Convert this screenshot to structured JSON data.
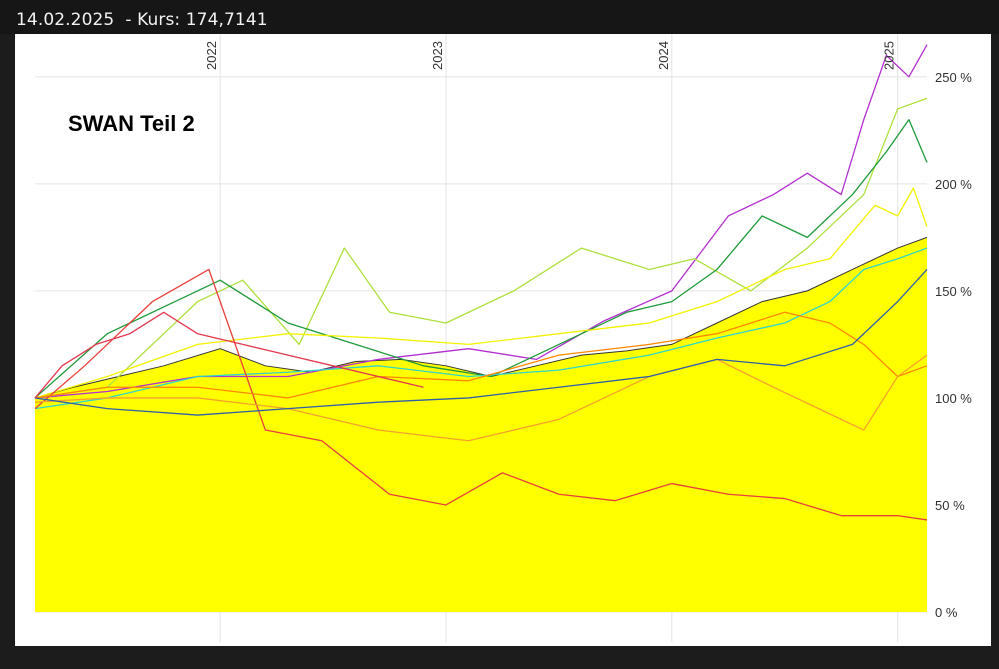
{
  "header": {
    "date": "14.02.2025",
    "quote_label": "- Kurs:",
    "quote_value": "174,7141"
  },
  "chart_data": {
    "type": "line",
    "title": "SWAN Teil 2",
    "x_ticks": [
      "2022",
      "2023",
      "2024",
      "2025"
    ],
    "y_ticks": [
      "0 %",
      "50 %",
      "100 %",
      "150 %",
      "200 %",
      "250 %"
    ],
    "ylim": [
      0,
      270
    ],
    "xlim": [
      2021.18,
      2025.13
    ],
    "grid": true,
    "area_series": {
      "color": "#ffff00",
      "edge_color": "#333333",
      "x": [
        2021.18,
        2021.35,
        2021.55,
        2021.75,
        2022.0,
        2022.2,
        2022.4,
        2022.6,
        2022.8,
        2023.0,
        2023.2,
        2023.4,
        2023.6,
        2023.8,
        2024.0,
        2024.2,
        2024.4,
        2024.6,
        2024.8,
        2025.0,
        2025.13
      ],
      "values": [
        100,
        105,
        110,
        115,
        123,
        115,
        112,
        117,
        118,
        115,
        110,
        115,
        120,
        122,
        125,
        135,
        145,
        150,
        160,
        170,
        175
      ]
    },
    "series": [
      {
        "color": "#b32fd1",
        "x": [
          2021.18,
          2021.5,
          2021.9,
          2022.3,
          2022.7,
          2023.1,
          2023.4,
          2023.7,
          2024.0,
          2024.25,
          2024.45,
          2024.6,
          2024.75,
          2024.85,
          2024.95,
          2025.05,
          2025.13
        ],
        "values": [
          100,
          103,
          110,
          110,
          118,
          123,
          118,
          136,
          150,
          185,
          195,
          205,
          195,
          230,
          260,
          250,
          265
        ]
      },
      {
        "color": "#aee03b",
        "x": [
          2021.18,
          2021.5,
          2021.9,
          2022.1,
          2022.35,
          2022.55,
          2022.75,
          2023.0,
          2023.3,
          2023.6,
          2023.9,
          2024.1,
          2024.35,
          2024.6,
          2024.85,
          2025.0,
          2025.13
        ],
        "values": [
          100,
          105,
          145,
          155,
          125,
          170,
          140,
          135,
          150,
          170,
          160,
          165,
          150,
          170,
          195,
          235,
          240
        ]
      },
      {
        "color": "#1f9a3a",
        "x": [
          2021.18,
          2021.5,
          2021.8,
          2022.0,
          2022.3,
          2022.6,
          2022.9,
          2023.2,
          2023.5,
          2023.8,
          2024.0,
          2024.2,
          2024.4,
          2024.6,
          2024.8,
          2024.95,
          2025.05,
          2025.13
        ],
        "values": [
          100,
          130,
          145,
          155,
          135,
          125,
          115,
          110,
          125,
          140,
          145,
          160,
          185,
          175,
          195,
          215,
          230,
          210
        ]
      },
      {
        "color": "#f2f200",
        "x": [
          2021.18,
          2021.5,
          2021.9,
          2022.3,
          2022.7,
          2023.1,
          2023.5,
          2023.9,
          2024.2,
          2024.5,
          2024.7,
          2024.9,
          2025.0,
          2025.07,
          2025.13
        ],
        "values": [
          100,
          110,
          125,
          130,
          128,
          125,
          130,
          135,
          145,
          160,
          165,
          190,
          185,
          198,
          180
        ]
      },
      {
        "color": "#30d6c8",
        "x": [
          2021.18,
          2021.5,
          2021.9,
          2022.3,
          2022.7,
          2023.1,
          2023.5,
          2023.9,
          2024.2,
          2024.5,
          2024.7,
          2024.85,
          2025.0,
          2025.13
        ],
        "values": [
          95,
          100,
          110,
          112,
          115,
          110,
          113,
          120,
          128,
          135,
          145,
          160,
          165,
          170
        ]
      },
      {
        "color": "#e8403a",
        "x": [
          2021.18,
          2021.4,
          2021.7,
          2021.95,
          2022.2,
          2022.45,
          2022.75,
          2023.0,
          2023.25,
          2023.5,
          2023.75,
          2024.0,
          2024.25,
          2024.5,
          2024.75,
          2025.0,
          2025.13
        ],
        "values": [
          95,
          115,
          145,
          160,
          85,
          80,
          55,
          50,
          65,
          55,
          52,
          60,
          55,
          53,
          45,
          45,
          43
        ]
      },
      {
        "color": "#ff8800",
        "x": [
          2021.18,
          2021.5,
          2021.9,
          2022.3,
          2022.7,
          2023.1,
          2023.5,
          2023.9,
          2024.2,
          2024.5,
          2024.7,
          2024.85,
          2025.0,
          2025.13
        ],
        "values": [
          100,
          105,
          105,
          100,
          110,
          108,
          120,
          125,
          130,
          140,
          135,
          125,
          110,
          115
        ]
      },
      {
        "color": "#f7a22a",
        "x": [
          2021.18,
          2021.5,
          2021.9,
          2022.3,
          2022.7,
          2023.1,
          2023.5,
          2023.9,
          2024.2,
          2024.45,
          2024.65,
          2024.85,
          2025.0,
          2025.13
        ],
        "values": [
          98,
          100,
          100,
          95,
          85,
          80,
          90,
          110,
          118,
          105,
          95,
          85,
          110,
          120
        ]
      },
      {
        "color": "#2f5fa8",
        "x": [
          2021.18,
          2021.5,
          2021.9,
          2022.3,
          2022.7,
          2023.1,
          2023.5,
          2023.9,
          2024.2,
          2024.5,
          2024.8,
          2025.0,
          2025.13
        ],
        "values": [
          100,
          95,
          92,
          95,
          98,
          100,
          105,
          110,
          118,
          115,
          125,
          145,
          160
        ]
      },
      {
        "color": "#e2384e",
        "x": [
          2021.18,
          2021.3,
          2021.45,
          2021.6,
          2021.75,
          2021.9,
          2022.1,
          2022.3,
          2022.5,
          2022.7,
          2022.9
        ],
        "values": [
          100,
          115,
          125,
          130,
          140,
          130,
          125,
          120,
          115,
          110,
          105
        ]
      }
    ]
  }
}
